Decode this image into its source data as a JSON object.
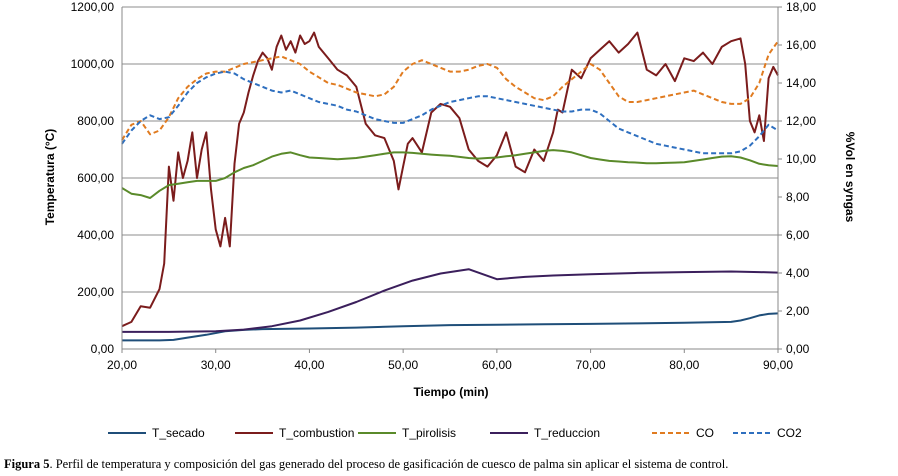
{
  "caption": {
    "label": "Figura 5",
    "text": ". Perfil de temperatura y composición del gas generado del proceso de gasificación de cuesco de palma sin aplicar el sistema de control."
  },
  "chart_data": {
    "type": "line",
    "xlabel": "Tiempo (min)",
    "ylabel": "Temperatura (°C)",
    "y2label": "%Vol en syngas",
    "xlim": [
      20,
      90
    ],
    "ylim": [
      0,
      1200
    ],
    "y2lim": [
      0,
      18
    ],
    "x_ticks": [
      "20,00",
      "30,00",
      "40,00",
      "50,00",
      "60,00",
      "70,00",
      "80,00",
      "90,00"
    ],
    "y_ticks": [
      "0,00",
      "200,00",
      "400,00",
      "600,00",
      "800,00",
      "1000,00",
      "1200,00"
    ],
    "y2_ticks": [
      "0,00",
      "2,00",
      "4,00",
      "6,00",
      "8,00",
      "10,00",
      "12,00",
      "14,00",
      "16,00",
      "18,00"
    ],
    "grid": "horizontal",
    "legend_position": "bottom",
    "series": [
      {
        "name": "T_secado",
        "axis": "left",
        "color": "#1f4e79",
        "dash": "solid",
        "x": [
          20,
          22,
          24,
          25.5,
          27,
          29,
          31,
          33,
          35,
          40,
          45,
          50,
          55,
          60,
          65,
          70,
          75,
          80,
          85,
          86,
          87,
          88,
          89,
          90
        ],
        "y": [
          30,
          30,
          30,
          32,
          40,
          50,
          62,
          67,
          70,
          72,
          75,
          80,
          84,
          85,
          87,
          88,
          90,
          92,
          95,
          100,
          108,
          118,
          123,
          125
        ]
      },
      {
        "name": "T_combustion",
        "axis": "left",
        "color": "#7b1c1c",
        "dash": "solid",
        "x": [
          20,
          21,
          22,
          23,
          24,
          24.5,
          25,
          25.5,
          26,
          26.5,
          27,
          27.5,
          28,
          28.5,
          29,
          29.5,
          30,
          30.5,
          31,
          31.5,
          32,
          32.5,
          33,
          33.5,
          34,
          34.5,
          35,
          35.5,
          36,
          36.5,
          37,
          37.5,
          38,
          38.5,
          39,
          39.5,
          40,
          40.5,
          41,
          42,
          43,
          44,
          45,
          46,
          47,
          48,
          49,
          49.5,
          50,
          50.5,
          51,
          52,
          53,
          54,
          55,
          56,
          57,
          58,
          59,
          60,
          61,
          62,
          63,
          64,
          65,
          66,
          66.5,
          67,
          68,
          69,
          70,
          71,
          72,
          73,
          74,
          75,
          76,
          77,
          78,
          79,
          80,
          81,
          82,
          83,
          84,
          85,
          86,
          86.5,
          87,
          87.5,
          88,
          88.5,
          89,
          89.5,
          90
        ],
        "y": [
          80,
          95,
          150,
          145,
          210,
          300,
          640,
          520,
          690,
          600,
          660,
          760,
          600,
          700,
          760,
          560,
          420,
          360,
          460,
          360,
          650,
          790,
          830,
          900,
          960,
          1010,
          1040,
          1020,
          980,
          1060,
          1100,
          1050,
          1080,
          1040,
          1100,
          1070,
          1080,
          1110,
          1060,
          1020,
          980,
          960,
          920,
          790,
          750,
          740,
          660,
          560,
          640,
          720,
          740,
          690,
          830,
          860,
          850,
          810,
          700,
          660,
          640,
          680,
          760,
          640,
          620,
          700,
          660,
          760,
          840,
          830,
          980,
          950,
          1020,
          1050,
          1080,
          1040,
          1070,
          1110,
          980,
          960,
          1000,
          940,
          1020,
          1010,
          1040,
          1000,
          1060,
          1080,
          1090,
          1000,
          800,
          760,
          820,
          730,
          950,
          990,
          960
        ]
      },
      {
        "name": "T_pirolisis",
        "axis": "left",
        "color": "#5a8a2a",
        "dash": "solid",
        "x": [
          20,
          21,
          22,
          23,
          24,
          25,
          26,
          27,
          28,
          29,
          30,
          31,
          32,
          33,
          34,
          35,
          36,
          37,
          38,
          39,
          40,
          41,
          42,
          43,
          44,
          45,
          46,
          47,
          48,
          49,
          50,
          51,
          52,
          53,
          54,
          55,
          56,
          57,
          58,
          59,
          60,
          61,
          62,
          63,
          64,
          65,
          66,
          67,
          68,
          69,
          70,
          71,
          72,
          73,
          74,
          75,
          76,
          77,
          78,
          79,
          80,
          81,
          82,
          83,
          84,
          85,
          86,
          87,
          88,
          89,
          90
        ],
        "y": [
          565,
          545,
          540,
          530,
          555,
          575,
          580,
          585,
          590,
          590,
          590,
          600,
          620,
          635,
          645,
          660,
          675,
          685,
          690,
          680,
          672,
          670,
          668,
          666,
          668,
          670,
          675,
          680,
          685,
          690,
          690,
          688,
          685,
          682,
          680,
          678,
          674,
          670,
          668,
          670,
          672,
          676,
          680,
          685,
          690,
          695,
          698,
          695,
          690,
          680,
          670,
          665,
          660,
          658,
          655,
          654,
          652,
          652,
          653,
          654,
          655,
          660,
          665,
          670,
          675,
          676,
          672,
          662,
          650,
          645,
          642
        ]
      },
      {
        "name": "T_reduccion",
        "axis": "left",
        "color": "#3b1f5c",
        "dash": "solid",
        "x": [
          20,
          25,
          30,
          33,
          36,
          39,
          42,
          45,
          48,
          51,
          54,
          57,
          60,
          63,
          66,
          70,
          75,
          80,
          85,
          88,
          90
        ],
        "y": [
          60,
          60,
          62,
          68,
          80,
          100,
          130,
          165,
          205,
          240,
          265,
          280,
          245,
          253,
          258,
          262,
          267,
          270,
          272,
          270,
          268
        ]
      },
      {
        "name": "CO",
        "axis": "right",
        "color": "#e07b20",
        "dash": "dashed",
        "x": [
          20,
          21,
          22,
          23,
          24,
          25,
          26,
          27,
          28,
          29,
          30,
          31,
          32,
          33,
          34,
          35,
          36,
          37,
          38,
          39,
          40,
          41,
          42,
          43,
          44,
          45,
          46,
          47,
          48,
          49,
          50,
          51,
          52,
          53,
          54,
          55,
          56,
          57,
          58,
          59,
          60,
          61,
          62,
          63,
          64,
          65,
          66,
          67,
          68,
          69,
          70,
          71,
          72,
          73,
          74,
          75,
          76,
          77,
          78,
          79,
          80,
          81,
          82,
          83,
          84,
          85,
          86,
          87,
          88,
          89,
          90
        ],
        "y": [
          11.0,
          11.8,
          12.0,
          11.3,
          11.5,
          12.2,
          13.2,
          13.8,
          14.2,
          14.5,
          14.6,
          14.6,
          14.8,
          15.0,
          15.1,
          15.2,
          15.3,
          15.4,
          15.2,
          15.0,
          14.6,
          14.3,
          14.0,
          13.9,
          13.7,
          13.5,
          13.4,
          13.3,
          13.4,
          13.8,
          14.6,
          15.0,
          15.2,
          15.0,
          14.8,
          14.6,
          14.6,
          14.7,
          14.9,
          15.0,
          14.8,
          14.2,
          13.8,
          13.5,
          13.2,
          13.1,
          13.3,
          13.8,
          14.2,
          14.6,
          15.0,
          14.7,
          14.0,
          13.3,
          13.0,
          13.0,
          13.1,
          13.2,
          13.3,
          13.4,
          13.5,
          13.6,
          13.4,
          13.2,
          13.0,
          12.9,
          12.9,
          13.2,
          14.0,
          15.5,
          16.2
        ]
      },
      {
        "name": "CO2",
        "axis": "right",
        "color": "#2e6fbf",
        "dash": "dashed",
        "x": [
          20,
          21,
          22,
          23,
          24,
          25,
          26,
          27,
          28,
          29,
          30,
          31,
          32,
          33,
          34,
          35,
          36,
          37,
          38,
          39,
          40,
          41,
          42,
          43,
          44,
          45,
          46,
          47,
          48,
          49,
          50,
          51,
          52,
          53,
          54,
          55,
          56,
          57,
          58,
          59,
          60,
          61,
          62,
          63,
          64,
          65,
          66,
          67,
          68,
          69,
          70,
          71,
          72,
          73,
          74,
          75,
          76,
          77,
          78,
          79,
          80,
          81,
          82,
          83,
          84,
          85,
          86,
          87,
          88,
          89,
          90
        ],
        "y": [
          10.8,
          11.5,
          12.0,
          12.3,
          12.1,
          12.2,
          12.8,
          13.5,
          14.0,
          14.3,
          14.5,
          14.6,
          14.5,
          14.2,
          14.0,
          13.8,
          13.6,
          13.5,
          13.6,
          13.4,
          13.2,
          13.0,
          12.9,
          12.8,
          12.6,
          12.5,
          12.3,
          12.1,
          12.0,
          11.9,
          11.9,
          12.1,
          12.3,
          12.6,
          12.8,
          13.0,
          13.1,
          13.2,
          13.3,
          13.3,
          13.2,
          13.1,
          13.0,
          12.9,
          12.8,
          12.7,
          12.6,
          12.5,
          12.5,
          12.6,
          12.6,
          12.4,
          12.0,
          11.6,
          11.4,
          11.2,
          11.0,
          10.8,
          10.7,
          10.6,
          10.5,
          10.4,
          10.3,
          10.3,
          10.3,
          10.3,
          10.4,
          10.7,
          11.2,
          11.8,
          11.5
        ]
      }
    ]
  }
}
